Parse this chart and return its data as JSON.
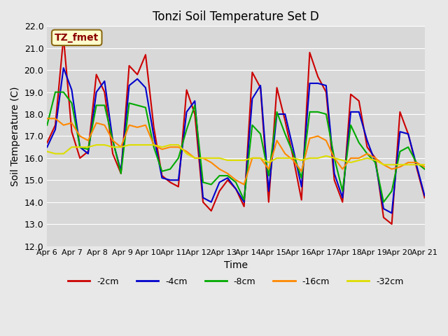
{
  "title": "Tonzi Soil Temperature Set D",
  "xlabel": "Time",
  "ylabel": "Soil Temperature (C)",
  "annotation": "TZ_fmet",
  "ylim": [
    12.0,
    22.0
  ],
  "yticks": [
    12.0,
    13.0,
    14.0,
    15.0,
    16.0,
    17.0,
    18.0,
    19.0,
    20.0,
    21.0,
    22.0
  ],
  "xtick_labels": [
    "Apr 6",
    "Apr 7",
    "Apr 8",
    "Apr 9",
    "Apr 10",
    "Apr 11",
    "Apr 12",
    "Apr 13",
    "Apr 14",
    "Apr 15",
    "Apr 16",
    "Apr 17",
    "Apr 18",
    "Apr 19",
    "Apr 20",
    "Apr 21"
  ],
  "background_color": "#e8e8e8",
  "plot_bg_color": "#d8d8d8",
  "series": [
    {
      "label": "-2cm",
      "color": "#cc0000",
      "lw": 1.5,
      "values": [
        16.7,
        17.5,
        21.5,
        17.2,
        16.0,
        16.3,
        19.8,
        19.0,
        16.2,
        15.3,
        20.2,
        19.8,
        20.7,
        17.4,
        15.2,
        14.9,
        14.7,
        19.1,
        18.0,
        14.0,
        13.6,
        14.5,
        15.0,
        14.6,
        13.8,
        19.9,
        19.2,
        14.0,
        19.2,
        17.7,
        16.0,
        14.1,
        20.8,
        19.7,
        19.0,
        15.0,
        14.0,
        18.9,
        18.6,
        16.5,
        16.0,
        13.3,
        13.0,
        18.1,
        17.1,
        15.6,
        14.2
      ]
    },
    {
      "label": "-4cm",
      "color": "#0000cc",
      "lw": 1.5,
      "values": [
        16.5,
        17.3,
        20.1,
        19.1,
        16.5,
        16.2,
        19.0,
        19.5,
        16.8,
        15.4,
        19.3,
        19.6,
        19.2,
        17.0,
        15.1,
        15.0,
        15.0,
        18.1,
        18.6,
        14.2,
        14.0,
        14.9,
        15.1,
        14.6,
        14.0,
        18.7,
        19.3,
        14.5,
        18.0,
        18.0,
        16.4,
        14.7,
        19.4,
        19.4,
        19.3,
        15.3,
        14.2,
        18.1,
        18.1,
        16.8,
        15.8,
        13.7,
        13.5,
        17.2,
        17.1,
        15.7,
        14.3
      ]
    },
    {
      "label": "-8cm",
      "color": "#00aa00",
      "lw": 1.5,
      "values": [
        17.5,
        19.0,
        19.0,
        18.5,
        16.5,
        16.4,
        18.4,
        18.4,
        16.8,
        15.3,
        18.5,
        18.4,
        18.3,
        16.5,
        15.4,
        15.5,
        16.0,
        17.3,
        18.4,
        14.9,
        14.8,
        15.2,
        15.2,
        14.9,
        14.1,
        17.5,
        17.1,
        15.2,
        18.1,
        17.1,
        16.2,
        15.1,
        18.1,
        18.1,
        18.0,
        16.0,
        14.5,
        17.5,
        16.7,
        16.2,
        15.8,
        14.0,
        14.5,
        16.3,
        16.5,
        15.8,
        15.5
      ]
    },
    {
      "label": "-16cm",
      "color": "#ff8800",
      "lw": 1.5,
      "values": [
        17.8,
        17.8,
        17.5,
        17.6,
        17.0,
        16.8,
        17.6,
        17.5,
        16.8,
        16.5,
        17.5,
        17.4,
        17.5,
        16.6,
        16.4,
        16.5,
        16.5,
        16.3,
        16.0,
        16.0,
        15.8,
        15.5,
        15.3,
        15.0,
        14.8,
        16.0,
        16.0,
        15.5,
        16.8,
        16.2,
        15.9,
        15.4,
        16.9,
        17.0,
        16.8,
        16.0,
        15.5,
        16.0,
        16.0,
        16.2,
        16.0,
        15.7,
        15.5,
        15.6,
        15.8,
        15.8,
        15.6
      ]
    },
    {
      "label": "-32cm",
      "color": "#dddd00",
      "lw": 1.5,
      "values": [
        16.3,
        16.2,
        16.2,
        16.5,
        16.5,
        16.5,
        16.6,
        16.6,
        16.5,
        16.5,
        16.6,
        16.6,
        16.6,
        16.6,
        16.5,
        16.6,
        16.6,
        16.2,
        16.0,
        16.0,
        16.0,
        16.0,
        15.9,
        15.9,
        15.9,
        16.0,
        16.0,
        15.8,
        16.0,
        16.0,
        16.0,
        15.9,
        16.0,
        16.0,
        16.1,
        16.0,
        15.9,
        15.8,
        15.9,
        16.0,
        15.9,
        15.7,
        15.7,
        15.7,
        15.7,
        15.7,
        15.7
      ]
    }
  ]
}
